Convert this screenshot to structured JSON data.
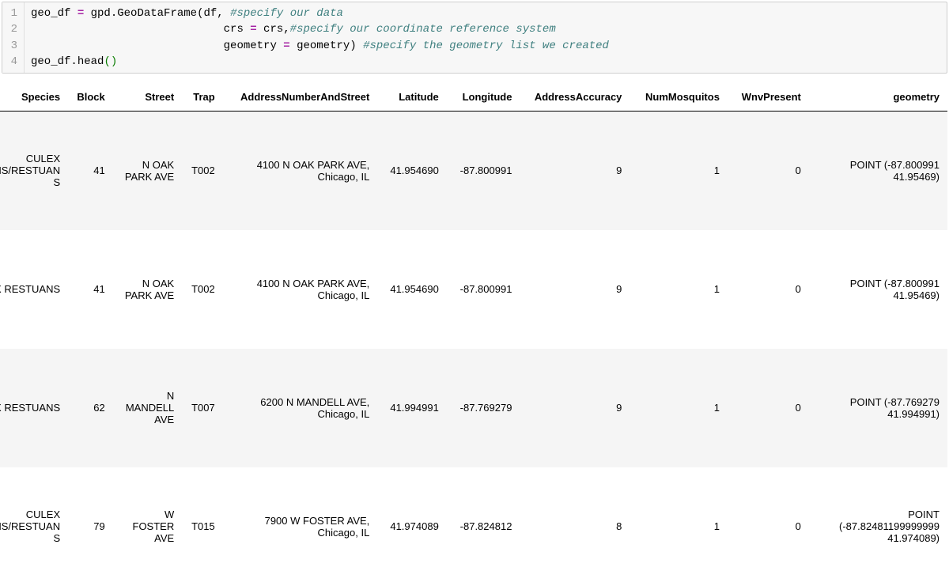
{
  "code": {
    "gutter": [
      "1",
      "2",
      "3",
      "4"
    ],
    "line1": {
      "a": "geo_df ",
      "op": "=",
      "b": " gpd",
      "c": ".",
      "d": "GeoDataFrame",
      "e": "(df, ",
      "cmt": "#specify our data"
    },
    "line2": {
      "indent": "                             ",
      "a": "crs ",
      "op": "=",
      "b": " crs,",
      "cmt": "#specify our coordinate reference system"
    },
    "line3": {
      "indent": "                             ",
      "a": "geometry ",
      "op": "=",
      "b": " geometry) ",
      "cmt": "#specify the geometry list we created"
    },
    "line4": {
      "a": "geo_df",
      "b": ".",
      "c": "head",
      "po": "(",
      "pc": ")"
    }
  },
  "table": {
    "columns": [
      "Species",
      "Block",
      "Street",
      "Trap",
      "AddressNumberAndStreet",
      "Latitude",
      "Longitude",
      "AddressAccuracy",
      "NumMosquitos",
      "WnvPresent",
      "geometry"
    ],
    "col_classes": [
      "col-species",
      "col-block",
      "col-street",
      "col-trap",
      "col-addr",
      "col-lat",
      "col-lon",
      "col-acc",
      "col-mosq",
      "col-wnv",
      "col-geom"
    ],
    "rows": [
      {
        "Species": "CULEX PIPIENS/RESTUANS",
        "Block": "41",
        "Street": "N OAK PARK AVE",
        "Trap": "T002",
        "AddressNumberAndStreet": "4100 N OAK PARK AVE, Chicago, IL",
        "Latitude": "41.954690",
        "Longitude": "-87.800991",
        "AddressAccuracy": "9",
        "NumMosquitos": "1",
        "WnvPresent": "0",
        "geometry": "POINT (-87.800991 41.95469)"
      },
      {
        "Species": "CULEX RESTUANS",
        "Block": "41",
        "Street": "N OAK PARK AVE",
        "Trap": "T002",
        "AddressNumberAndStreet": "4100 N OAK PARK AVE, Chicago, IL",
        "Latitude": "41.954690",
        "Longitude": "-87.800991",
        "AddressAccuracy": "9",
        "NumMosquitos": "1",
        "WnvPresent": "0",
        "geometry": "POINT (-87.800991 41.95469)"
      },
      {
        "Species": "CULEX RESTUANS",
        "Block": "62",
        "Street": "N MANDELL AVE",
        "Trap": "T007",
        "AddressNumberAndStreet": "6200 N MANDELL AVE, Chicago, IL",
        "Latitude": "41.994991",
        "Longitude": "-87.769279",
        "AddressAccuracy": "9",
        "NumMosquitos": "1",
        "WnvPresent": "0",
        "geometry": "POINT (-87.769279 41.994991)"
      },
      {
        "Species": "CULEX PIPIENS/RESTUANS",
        "Block": "79",
        "Street": "W FOSTER AVE",
        "Trap": "T015",
        "AddressNumberAndStreet": "7900 W FOSTER AVE, Chicago, IL",
        "Latitude": "41.974089",
        "Longitude": "-87.824812",
        "AddressAccuracy": "8",
        "NumMosquitos": "1",
        "WnvPresent": "0",
        "geometry": "POINT (-87.82481199999999 41.974089)"
      }
    ],
    "background_odd": "#f5f5f5",
    "background_even": "#ffffff",
    "header_border": "#000000"
  }
}
